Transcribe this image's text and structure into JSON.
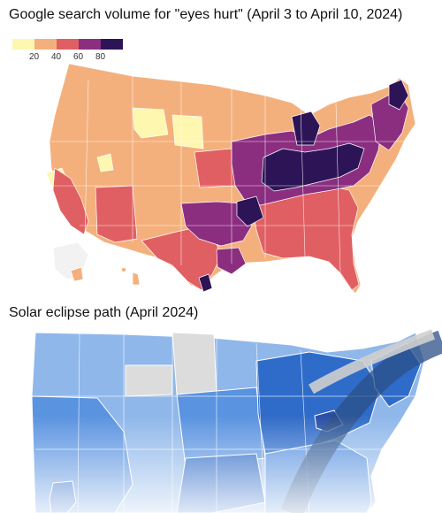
{
  "map1": {
    "title": "Google search volume for \"eyes hurt\" (April 3 to April 10, 2024)",
    "legend": {
      "colors": [
        "#fdf7b0",
        "#f4b07c",
        "#e05f63",
        "#8b2e80",
        "#2d1457"
      ],
      "ticks": [
        "20",
        "40",
        "60",
        "80"
      ]
    },
    "colors": {
      "lowest": "#fdf7b0",
      "low": "#f4b07c",
      "mid": "#e05f63",
      "high": "#8b2e80",
      "highest": "#2d1457"
    }
  },
  "map2": {
    "title": "Solar eclipse path (April 2024)",
    "colors": {
      "light": "#8fb7ea",
      "mid": "#5a93e0",
      "dark": "#2f6cc9",
      "gray": "#dcdcdc",
      "path": "#2b4f86"
    }
  }
}
